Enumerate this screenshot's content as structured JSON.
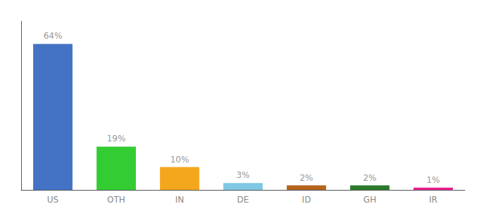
{
  "chart_data": {
    "type": "bar",
    "categories": [
      "US",
      "OTH",
      "IN",
      "DE",
      "ID",
      "GH",
      "IR"
    ],
    "values": [
      64,
      19,
      10,
      3,
      2,
      2,
      1
    ],
    "value_labels": [
      "64%",
      "19%",
      "10%",
      "3%",
      "2%",
      "2%",
      "1%"
    ],
    "colors": [
      "#4472c4",
      "#33cc33",
      "#f4a61d",
      "#7ec8e3",
      "#b5651d",
      "#2d7a2d",
      "#e91e8c"
    ],
    "ylim": [
      0,
      74
    ],
    "yticks": [],
    "tick_labels": "x",
    "data_labels": true,
    "grid": false
  }
}
